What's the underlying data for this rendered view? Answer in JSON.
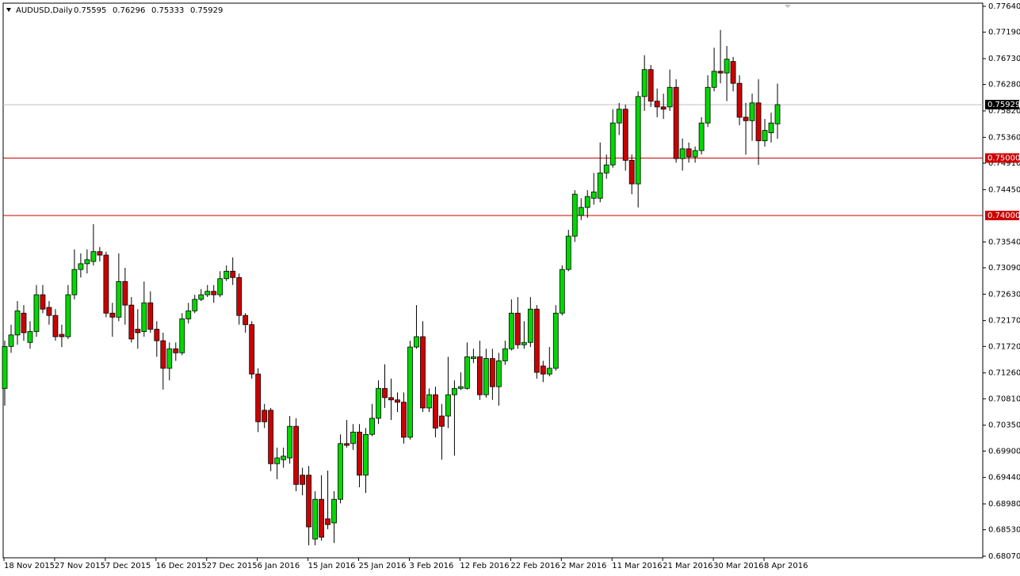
{
  "chart_data": {
    "type": "candlestick",
    "title": "AUDUSD,Daily",
    "header_values": [
      0.75595,
      0.76296,
      0.75333,
      0.75929
    ],
    "ylim": [
      0.6807,
      0.7764
    ],
    "yticks": [
      {
        "value": 0.7764,
        "label": "0.77640"
      },
      {
        "value": 0.7719,
        "label": "0.77190"
      },
      {
        "value": 0.7673,
        "label": "0.76730"
      },
      {
        "value": 0.7628,
        "label": "0.76280"
      },
      {
        "value": 0.7582,
        "label": "0.75820"
      },
      {
        "value": 0.7536,
        "label": "0.75360"
      },
      {
        "value": 0.7491,
        "label": "0.74910"
      },
      {
        "value": 0.7445,
        "label": "0.74450"
      },
      {
        "value": 0.7354,
        "label": "0.73540"
      },
      {
        "value": 0.7309,
        "label": "0.73090"
      },
      {
        "value": 0.7263,
        "label": "0.72630"
      },
      {
        "value": 0.7217,
        "label": "0.72170"
      },
      {
        "value": 0.7172,
        "label": "0.71720"
      },
      {
        "value": 0.7126,
        "label": "0.71260"
      },
      {
        "value": 0.7081,
        "label": "0.70810"
      },
      {
        "value": 0.7035,
        "label": "0.70350"
      },
      {
        "value": 0.699,
        "label": "0.69900"
      },
      {
        "value": 0.6944,
        "label": "0.69440"
      },
      {
        "value": 0.6898,
        "label": "0.68980"
      },
      {
        "value": 0.6853,
        "label": "0.68530"
      },
      {
        "value": 0.6807,
        "label": "0.68070"
      }
    ],
    "x_labels": [
      "18 Nov 2015",
      "27 Nov 2015",
      "7 Dec 2015",
      "16 Dec 2015",
      "27 Dec 2015",
      "6 Jan 2016",
      "15 Jan 2016",
      "25 Jan 2016",
      "3 Feb 2016",
      "12 Feb 2016",
      "22 Feb 2016",
      "2 Mar 2016",
      "11 Mar 2016",
      "21 Mar 2016",
      "30 Mar 2016",
      "8 Apr 2016"
    ],
    "up_color": "#00d800",
    "down_color": "#cc0000",
    "open": [
      0.7099,
      0.7172,
      0.7192,
      0.723,
      0.7179,
      0.7198,
      0.7262,
      0.724,
      0.7226,
      0.7193,
      0.7189,
      0.7262,
      0.7306,
      0.7316,
      0.732,
      0.7337,
      0.7331,
      0.723,
      0.7223,
      0.7285,
      0.7244,
      0.7202,
      0.7198,
      0.7248,
      0.7202,
      0.7182,
      0.7134,
      0.7168,
      0.7161,
      0.722,
      0.7234,
      0.7254,
      0.7262,
      0.7268,
      0.7262,
      0.729,
      0.7303,
      0.7292,
      0.7226,
      0.721,
      0.7124,
      0.7061,
      0.7061,
      0.6968,
      0.6975,
      0.6978,
      0.7033,
      0.6948,
      0.6948,
      0.6837,
      0.6906,
      0.6872,
      0.6865,
      0.6906,
      0.7003,
      0.7003,
      0.7023,
      0.6948,
      0.7019,
      0.7047,
      0.7099,
      0.7083,
      0.7079,
      0.7075,
      0.7014,
      0.7171,
      0.7189,
      0.7065,
      0.7088,
      0.7051,
      0.7051,
      0.7088,
      0.7099,
      0.7099,
      0.7151,
      0.7154,
      0.7088,
      0.7151,
      0.7102,
      0.7147,
      0.7168,
      0.723,
      0.7175,
      0.7179,
      0.7237,
      0.7138,
      0.7124,
      0.7134,
      0.723,
      0.7306,
      0.7364,
      0.74,
      0.7414,
      0.743,
      0.743,
      0.7474,
      0.7488,
      0.7561,
      0.7585,
      0.7496,
      0.7455,
      0.7607,
      0.7654,
      0.7599,
      0.7589,
      0.7589,
      0.7623,
      0.7499,
      0.7516,
      0.7502,
      0.7513,
      0.7561,
      0.7623,
      0.7651,
      0.7648,
      0.7668,
      0.763,
      0.7571,
      0.7565,
      0.7596,
      0.753,
      0.7544,
      0.75595
    ],
    "high": [
      0.7182,
      0.721,
      0.7251,
      0.7244,
      0.7216,
      0.7279,
      0.7279,
      0.7251,
      0.7237,
      0.721,
      0.7279,
      0.7341,
      0.7334,
      0.7341,
      0.7385,
      0.7345,
      0.7337,
      0.7248,
      0.7334,
      0.7309,
      0.7258,
      0.7237,
      0.7285,
      0.7268,
      0.7216,
      0.7196,
      0.7179,
      0.7179,
      0.723,
      0.7248,
      0.7262,
      0.7272,
      0.7279,
      0.7279,
      0.7303,
      0.7313,
      0.7327,
      0.7299,
      0.723,
      0.7216,
      0.7134,
      0.7072,
      0.7065,
      0.6996,
      0.6996,
      0.7051,
      0.7047,
      0.6961,
      0.6964,
      0.692,
      0.6948,
      0.6956,
      0.692,
      0.7019,
      0.7044,
      0.7037,
      0.7037,
      0.703,
      0.7072,
      0.7113,
      0.7141,
      0.7116,
      0.7092,
      0.7092,
      0.7182,
      0.7244,
      0.7216,
      0.7099,
      0.7102,
      0.7072,
      0.7154,
      0.7113,
      0.7127,
      0.7179,
      0.7168,
      0.7182,
      0.7168,
      0.7168,
      0.7161,
      0.7182,
      0.7254,
      0.7258,
      0.7216,
      0.7258,
      0.7244,
      0.7147,
      0.7171,
      0.7244,
      0.7313,
      0.7375,
      0.7444,
      0.743,
      0.7444,
      0.7474,
      0.7527,
      0.7506,
      0.7585,
      0.7596,
      0.7593,
      0.7506,
      0.7616,
      0.7679,
      0.7662,
      0.7621,
      0.7612,
      0.7654,
      0.7637,
      0.7534,
      0.7527,
      0.752,
      0.7571,
      0.7644,
      0.7692,
      0.7723,
      0.7695,
      0.7676,
      0.7644,
      0.7596,
      0.7612,
      0.7637,
      0.7568,
      0.7579,
      0.76296
    ],
    "low": [
      0.7069,
      0.7161,
      0.7175,
      0.7182,
      0.7168,
      0.7189,
      0.723,
      0.721,
      0.7182,
      0.7171,
      0.7185,
      0.7254,
      0.7292,
      0.7299,
      0.7313,
      0.732,
      0.7223,
      0.7189,
      0.7216,
      0.721,
      0.7179,
      0.7168,
      0.7189,
      0.7196,
      0.7154,
      0.7097,
      0.7113,
      0.7147,
      0.7157,
      0.7212,
      0.723,
      0.7251,
      0.7258,
      0.7248,
      0.7258,
      0.7286,
      0.7279,
      0.721,
      0.7196,
      0.7116,
      0.7023,
      0.703,
      0.6955,
      0.6941,
      0.6961,
      0.6968,
      0.692,
      0.6913,
      0.6826,
      0.6826,
      0.6834,
      0.6854,
      0.683,
      0.6899,
      0.6996,
      0.6992,
      0.6927,
      0.6917,
      0.7016,
      0.7037,
      0.7065,
      0.7044,
      0.7058,
      0.7003,
      0.701,
      0.7168,
      0.7058,
      0.7058,
      0.7014,
      0.6975,
      0.703,
      0.6982,
      0.7096,
      0.7097,
      0.7143,
      0.7079,
      0.7083,
      0.7079,
      0.7069,
      0.714,
      0.7165,
      0.7168,
      0.7168,
      0.7171,
      0.7116,
      0.711,
      0.712,
      0.713,
      0.7226,
      0.7303,
      0.7354,
      0.7392,
      0.7396,
      0.7419,
      0.7423,
      0.7464,
      0.7483,
      0.754,
      0.7478,
      0.7437,
      0.7414,
      0.7582,
      0.7589,
      0.7571,
      0.7568,
      0.7582,
      0.7492,
      0.7478,
      0.7492,
      0.7492,
      0.7506,
      0.7554,
      0.7616,
      0.763,
      0.7599,
      0.7616,
      0.7557,
      0.7506,
      0.753,
      0.7488,
      0.752,
      0.7527,
      0.75333
    ],
    "close": [
      0.7172,
      0.7192,
      0.7234,
      0.7196,
      0.7198,
      0.7262,
      0.7237,
      0.7226,
      0.7189,
      0.7189,
      0.7262,
      0.7306,
      0.7316,
      0.7323,
      0.7337,
      0.7331,
      0.723,
      0.7223,
      0.7285,
      0.7244,
      0.7185,
      0.7196,
      0.7248,
      0.7202,
      0.7182,
      0.7134,
      0.7168,
      0.7161,
      0.722,
      0.7234,
      0.7254,
      0.7262,
      0.7268,
      0.7262,
      0.729,
      0.7303,
      0.7292,
      0.7226,
      0.721,
      0.7124,
      0.7041,
      0.7041,
      0.6968,
      0.6978,
      0.6981,
      0.7033,
      0.6932,
      0.6932,
      0.6858,
      0.6906,
      0.684,
      0.6862,
      0.6906,
      0.7003,
      0.7,
      0.7023,
      0.6948,
      0.7019,
      0.7047,
      0.7099,
      0.7083,
      0.7079,
      0.7075,
      0.7014,
      0.7171,
      0.7189,
      0.7065,
      0.7088,
      0.703,
      0.7033,
      0.7088,
      0.7099,
      0.7102,
      0.7154,
      0.7154,
      0.7088,
      0.7151,
      0.7102,
      0.7147,
      0.7168,
      0.723,
      0.7175,
      0.7179,
      0.7237,
      0.7127,
      0.7124,
      0.7134,
      0.723,
      0.7306,
      0.7364,
      0.7437,
      0.7414,
      0.7433,
      0.7441,
      0.7474,
      0.7488,
      0.7561,
      0.7585,
      0.7496,
      0.7455,
      0.7607,
      0.7654,
      0.7599,
      0.7589,
      0.7585,
      0.7623,
      0.7499,
      0.7516,
      0.7502,
      0.7513,
      0.7561,
      0.7623,
      0.7651,
      0.7648,
      0.7672,
      0.763,
      0.7571,
      0.7565,
      0.7596,
      0.753,
      0.7548,
      0.7561,
      0.75929
    ],
    "levels": [
      {
        "value": 0.75,
        "label": "0.75000",
        "color": "#cc0000"
      },
      {
        "value": 0.74,
        "label": "0.74000",
        "color": "#cc0000"
      }
    ],
    "current_price": 0.75929,
    "current_color": "#c0c0c0"
  }
}
